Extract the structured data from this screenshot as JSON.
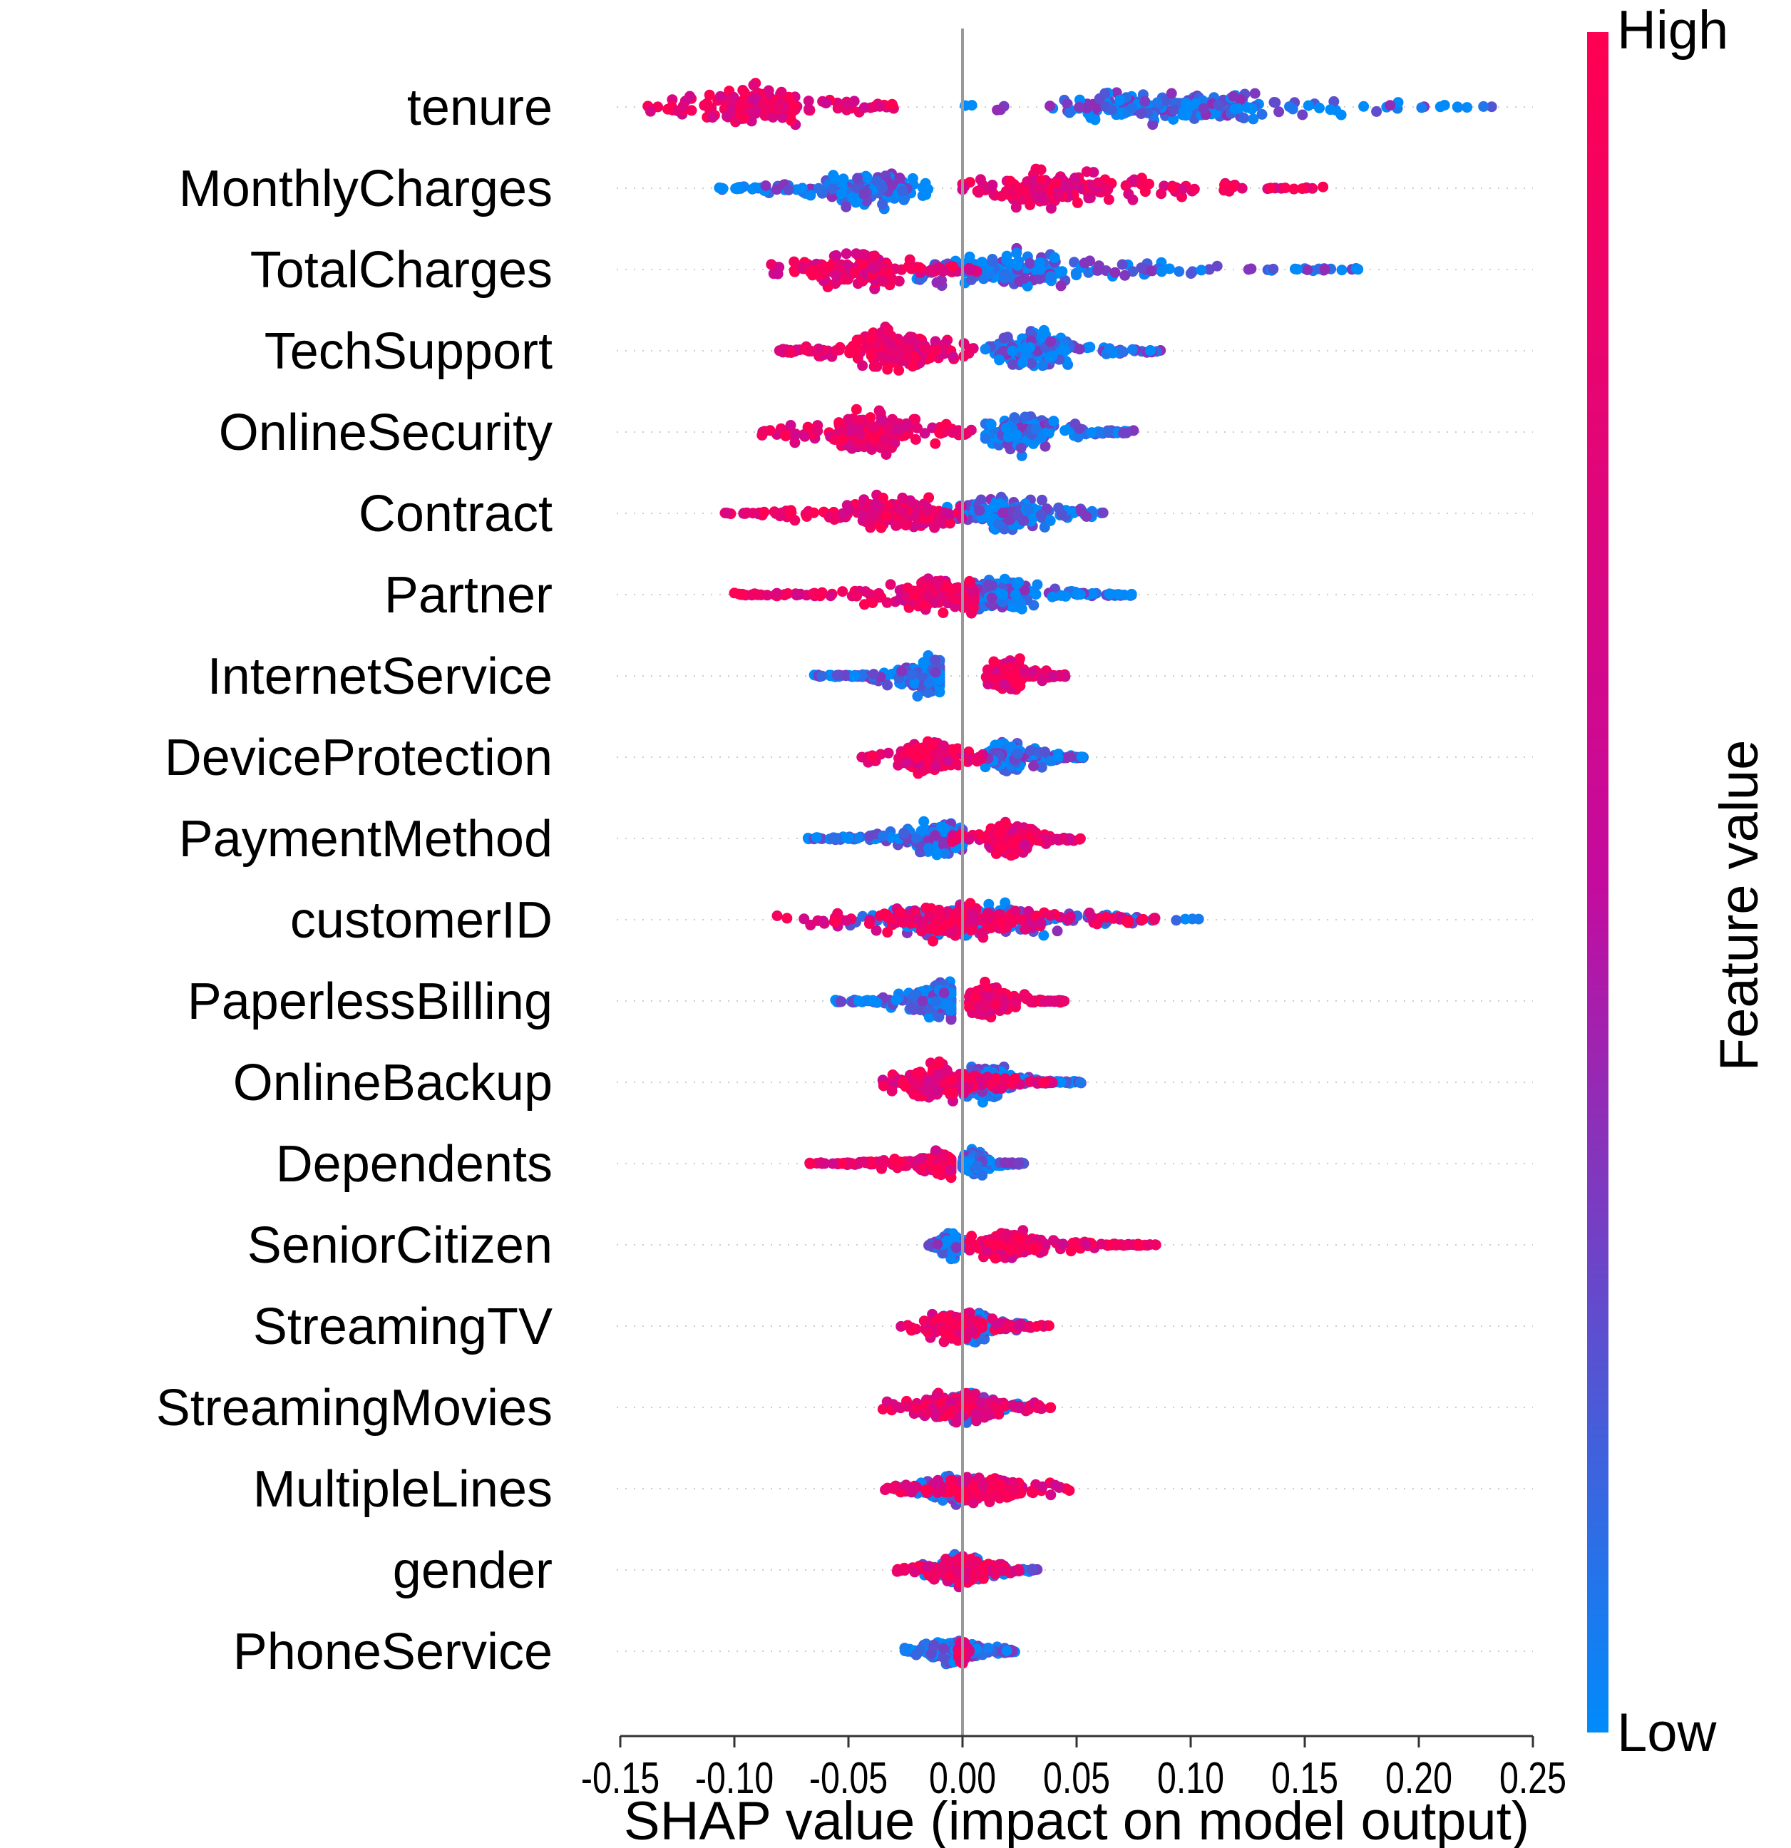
{
  "chart_data": {
    "type": "scatter",
    "subtype": "shap-beeswarm-summary",
    "xlabel": "SHAP value (impact on model output)",
    "xlim": [
      -0.15,
      0.25
    ],
    "xticks": [
      -0.15,
      -0.1,
      -0.05,
      0.0,
      0.05,
      0.1,
      0.15,
      0.2,
      0.25
    ],
    "xtick_labels": [
      "-0.15",
      "-0.10",
      "-0.05",
      "0.00",
      "0.05",
      "0.10",
      "0.15",
      "0.20",
      "0.25"
    ],
    "zero_line": 0.0,
    "colorbar": {
      "title": "Feature value",
      "high_label": "High",
      "low_label": "Low",
      "high_color": "#ff0052",
      "mid_color": "#c40b9e",
      "low_color": "#008bfb"
    },
    "features": [
      {
        "name": "tenure",
        "low_range": [
          -0.005,
          0.235
        ],
        "high_range": [
          -0.14,
          -0.03
        ],
        "low_center": 0.09,
        "high_center": -0.09,
        "spread": 0.8
      },
      {
        "name": "MonthlyCharges",
        "low_range": [
          -0.11,
          -0.01
        ],
        "high_range": [
          0.0,
          0.16
        ],
        "low_center": -0.04,
        "high_center": 0.04,
        "spread": 0.75
      },
      {
        "name": "TotalCharges",
        "low_range": [
          -0.02,
          0.175
        ],
        "high_range": [
          -0.09,
          0.01
        ],
        "low_center": 0.02,
        "high_center": -0.05,
        "spread": 0.75
      },
      {
        "name": "TechSupport",
        "low_range": [
          0.01,
          0.088
        ],
        "high_range": [
          -0.085,
          0.005
        ],
        "low_center": 0.03,
        "high_center": -0.03,
        "spread": 0.8
      },
      {
        "name": "OnlineSecurity",
        "low_range": [
          0.01,
          0.075
        ],
        "high_range": [
          -0.088,
          0.005
        ],
        "low_center": 0.025,
        "high_center": -0.04,
        "spread": 0.85
      },
      {
        "name": "Contract",
        "low_range": [
          -0.01,
          0.062
        ],
        "high_range": [
          -0.105,
          0.0
        ],
        "low_center": 0.02,
        "high_center": -0.03,
        "spread": 0.75
      },
      {
        "name": "Partner",
        "low_range": [
          0.005,
          0.075
        ],
        "high_range": [
          -0.1,
          0.005
        ],
        "low_center": 0.015,
        "high_center": -0.01,
        "spread": 0.75
      },
      {
        "name": "InternetService",
        "low_range": [
          -0.065,
          -0.01
        ],
        "high_range": [
          0.01,
          0.045
        ],
        "low_center": -0.015,
        "high_center": 0.02,
        "spread": 0.75
      },
      {
        "name": "DeviceProtection",
        "low_range": [
          0.01,
          0.053
        ],
        "high_range": [
          -0.045,
          0.01
        ],
        "low_center": 0.02,
        "high_center": -0.015,
        "spread": 0.7
      },
      {
        "name": "PaymentMethod",
        "low_range": [
          -0.07,
          0.0
        ],
        "high_range": [
          -0.005,
          0.052
        ],
        "low_center": -0.01,
        "high_center": 0.02,
        "spread": 0.7
      },
      {
        "name": "customerID",
        "low_range": [
          -0.05,
          0.11
        ],
        "high_range": [
          -0.082,
          0.085
        ],
        "low_center": 0.0,
        "high_center": -0.005,
        "spread": 0.75
      },
      {
        "name": "PaperlessBilling",
        "low_range": [
          -0.057,
          -0.005
        ],
        "high_range": [
          0.003,
          0.045
        ],
        "low_center": -0.01,
        "high_center": 0.01,
        "spread": 0.7
      },
      {
        "name": "OnlineBackup",
        "low_range": [
          0.0,
          0.053
        ],
        "high_range": [
          -0.035,
          0.04
        ],
        "low_center": 0.01,
        "high_center": -0.01,
        "spread": 0.7
      },
      {
        "name": "Dependents",
        "low_range": [
          0.0,
          0.027
        ],
        "high_range": [
          -0.067,
          -0.005
        ],
        "low_center": 0.005,
        "high_center": -0.01,
        "spread": 0.55
      },
      {
        "name": "SeniorCitizen",
        "low_range": [
          -0.015,
          0.002
        ],
        "high_range": [
          0.003,
          0.085
        ],
        "low_center": -0.005,
        "high_center": 0.02,
        "spread": 0.55
      },
      {
        "name": "StreamingTV",
        "low_range": [
          -0.015,
          0.03
        ],
        "high_range": [
          -0.027,
          0.038
        ],
        "low_center": 0.005,
        "high_center": -0.005,
        "spread": 0.6
      },
      {
        "name": "StreamingMovies",
        "low_range": [
          -0.015,
          0.03
        ],
        "high_range": [
          -0.035,
          0.04
        ],
        "low_center": 0.002,
        "high_center": -0.002,
        "spread": 0.6
      },
      {
        "name": "MultipleLines",
        "low_range": [
          -0.03,
          0.025
        ],
        "high_range": [
          -0.035,
          0.048
        ],
        "low_center": -0.002,
        "high_center": 0.01,
        "spread": 0.55
      },
      {
        "name": "gender",
        "low_range": [
          -0.02,
          0.033
        ],
        "high_range": [
          -0.03,
          0.025
        ],
        "low_center": 0.0,
        "high_center": 0.0,
        "spread": 0.55
      },
      {
        "name": "PhoneService",
        "low_range": [
          -0.028,
          0.023
        ],
        "high_range": [
          -0.002,
          0.003
        ],
        "low_center": -0.005,
        "high_center": 0.0,
        "spread": 0.45
      }
    ]
  }
}
